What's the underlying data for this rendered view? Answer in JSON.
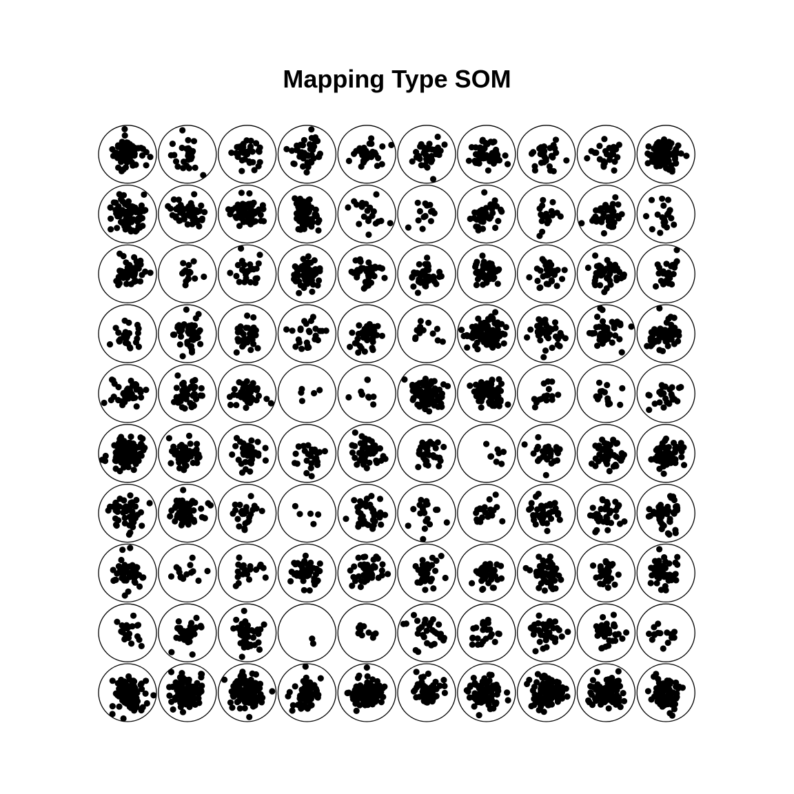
{
  "title": "Mapping Type SOM",
  "colors": {
    "background": "#ffffff",
    "ink": "#000000"
  },
  "chart_data": {
    "type": "scatter",
    "subtype": "som-mapping",
    "title": "Mapping Type SOM",
    "grid": {
      "cols": 10,
      "rows": 10,
      "topology": "rectangular"
    },
    "unit_order": "row-major from bottom-left (row 1 = bottom)",
    "approx_points_per_unit_bottom_to_top": [
      [
        120,
        100,
        110,
        70,
        110,
        55,
        80,
        100,
        90,
        70
      ],
      [
        20,
        30,
        45,
        2,
        10,
        30,
        25,
        40,
        35,
        15
      ],
      [
        45,
        14,
        20,
        45,
        45,
        35,
        35,
        50,
        30,
        50
      ],
      [
        50,
        60,
        25,
        5,
        40,
        20,
        20,
        35,
        35,
        45
      ],
      [
        100,
        45,
        40,
        25,
        50,
        30,
        8,
        25,
        50,
        60
      ],
      [
        40,
        40,
        45,
        5,
        10,
        80,
        80,
        15,
        15,
        25
      ],
      [
        25,
        45,
        35,
        25,
        45,
        12,
        90,
        40,
        40,
        60
      ],
      [
        45,
        15,
        25,
        60,
        35,
        40,
        45,
        30,
        40,
        25
      ],
      [
        80,
        55,
        55,
        55,
        20,
        14,
        40,
        20,
        45,
        20
      ],
      [
        60,
        25,
        35,
        40,
        30,
        40,
        60,
        30,
        25,
        90
      ]
    ]
  }
}
